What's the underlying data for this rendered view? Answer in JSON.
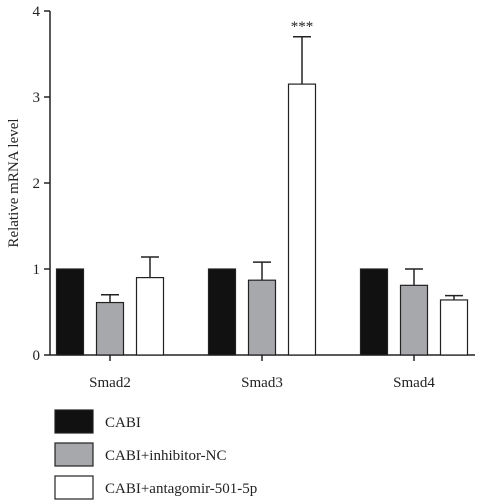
{
  "chart_data": {
    "type": "bar",
    "categories": [
      "Smad2",
      "Smad3",
      "Smad4"
    ],
    "series": [
      {
        "name": "CABI",
        "values": [
          1.0,
          1.0,
          1.0
        ],
        "errors": [
          0,
          0,
          0
        ],
        "color": "#111111"
      },
      {
        "name": "CABI+inhibitor-NC",
        "values": [
          0.61,
          0.87,
          0.81
        ],
        "errors": [
          0.09,
          0.21,
          0.19
        ],
        "color": "#a6a8ab"
      },
      {
        "name": "CABI+antagomir-501-5p",
        "values": [
          0.9,
          3.15,
          0.64
        ],
        "errors": [
          0.24,
          0.55,
          0.05
        ],
        "color": "#ffffff"
      }
    ],
    "annotations": [
      {
        "category": "Smad3",
        "series": 2,
        "text": "***"
      }
    ],
    "ylabel": "Relative mRNA level",
    "xlabel": "",
    "ylim": [
      0,
      4
    ],
    "yticks": [
      0,
      1,
      2,
      3,
      4
    ],
    "grid": false,
    "legend_position": "bottom"
  }
}
